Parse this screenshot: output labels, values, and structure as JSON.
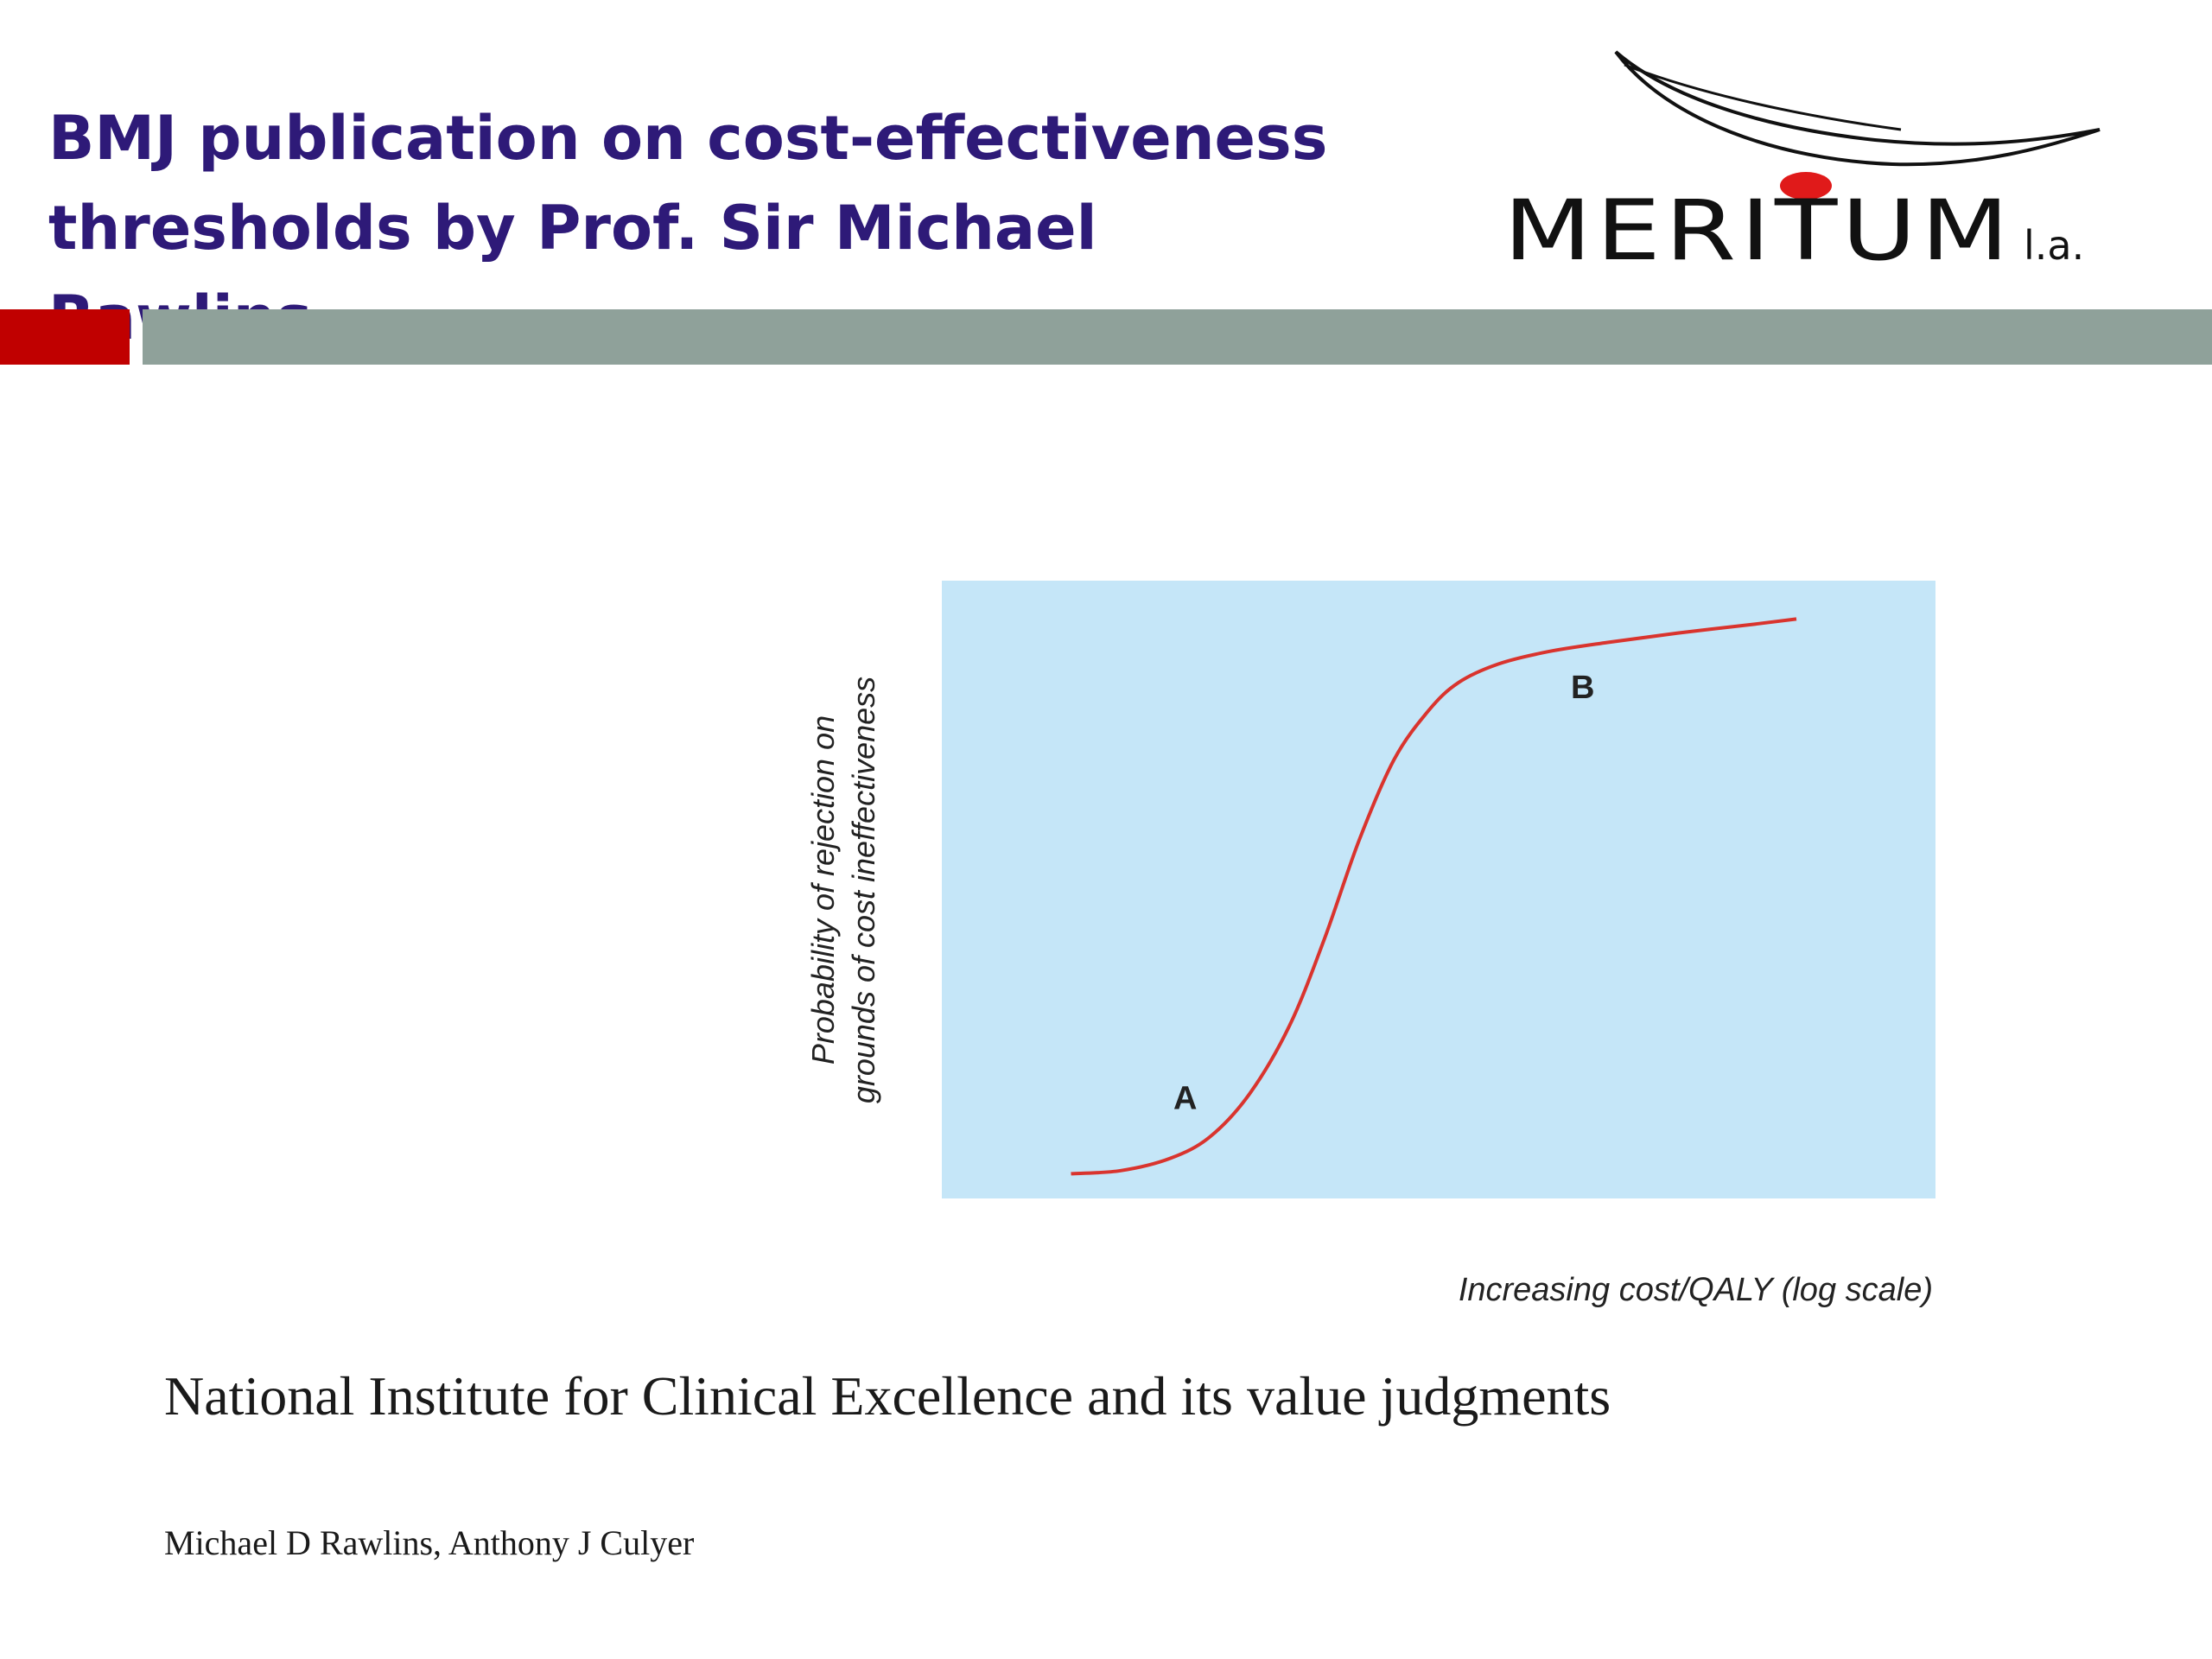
{
  "slide": {
    "title_line1": "BMJ publication on cost-effectiveness",
    "title_line2": "thresholds by Prof. Sir Michael Rawlins",
    "accent_red": "#c00000",
    "accent_gray": "#8fa19a",
    "title_color": "#2e1a78"
  },
  "logo": {
    "text_main": "MERITUM",
    "text_suffix": "l.a."
  },
  "chart_data": {
    "type": "line",
    "title": "",
    "xlabel": "Increasing cost/QALY (log scale)",
    "ylabel_line1": "Probability of rejection on",
    "ylabel_line2": "grounds of cost ineffectiveness",
    "xlim": [
      0,
      1
    ],
    "ylim": [
      0,
      1
    ],
    "grid": false,
    "background": "#c5e6f8",
    "line_color": "#d9342e",
    "series": [
      {
        "x": [
          0.13,
          0.18,
          0.23,
          0.27,
          0.31,
          0.35,
          0.385,
          0.42,
          0.455,
          0.49,
          0.52,
          0.56,
          0.61,
          0.67,
          0.74,
          0.82,
          0.86
        ],
        "values": [
          0.04,
          0.045,
          0.065,
          0.1,
          0.17,
          0.28,
          0.42,
          0.58,
          0.71,
          0.79,
          0.835,
          0.865,
          0.885,
          0.9,
          0.915,
          0.93,
          0.938
        ]
      }
    ],
    "annotations": [
      {
        "text": "A",
        "x": 0.245,
        "y": 0.145
      },
      {
        "text": "B",
        "x": 0.645,
        "y": 0.81
      }
    ]
  },
  "paper": {
    "title": "National Institute for Clinical Excellence and its value judgments",
    "authors": "Michael D Rawlins, Anthony J Culyer"
  }
}
